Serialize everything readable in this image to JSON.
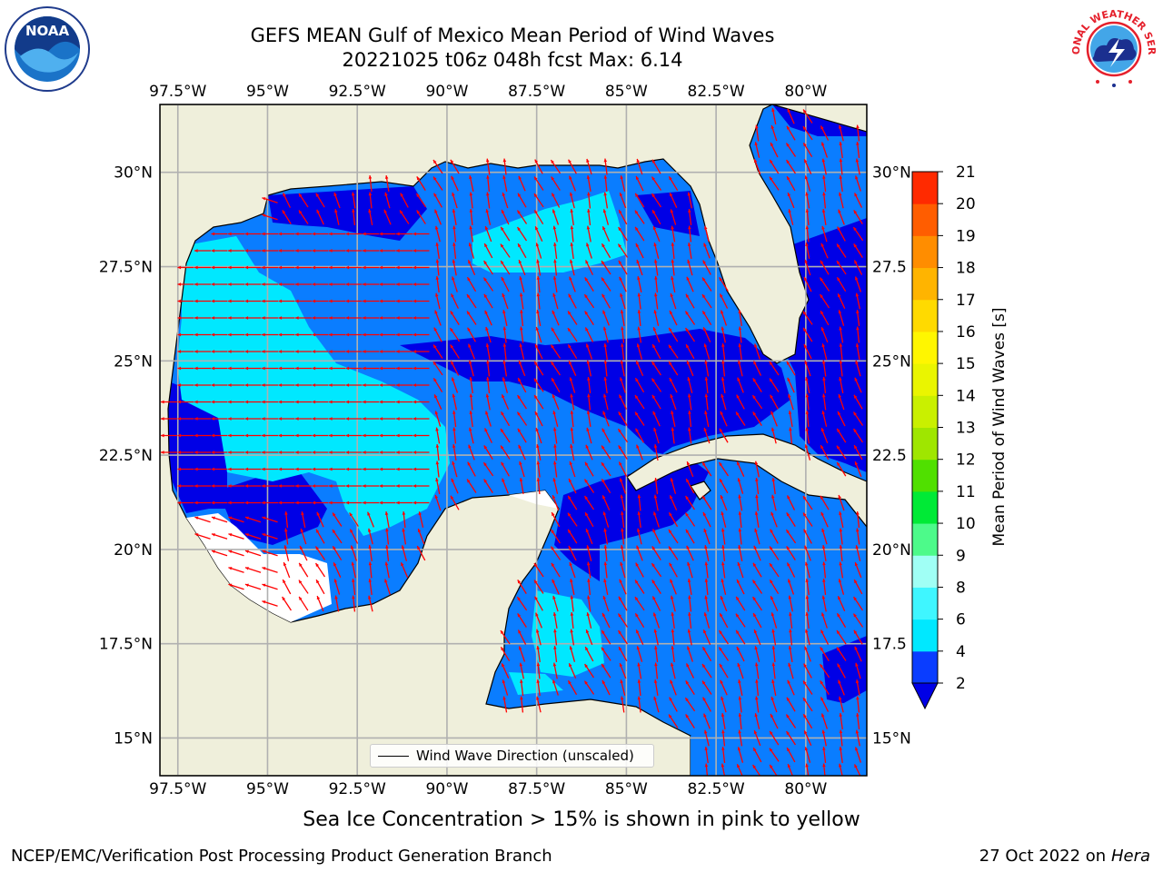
{
  "title": {
    "line1": "GEFS MEAN Gulf of Mexico Mean Period of Wind Waves",
    "line2": "20221025 t06z 048h fcst   Max: 6.14"
  },
  "map": {
    "lon_labels": [
      "97.5°W",
      "95°W",
      "92.5°W",
      "90°W",
      "87.5°W",
      "85°W",
      "82.5°W",
      "80°W"
    ],
    "lon_values": [
      -97.5,
      -95,
      -92.5,
      -90,
      -87.5,
      -85,
      -82.5,
      -80
    ],
    "lat_labels_left": [
      "30°N",
      "27.5°N",
      "25°N",
      "22.5°N",
      "20°N",
      "17.5°N",
      "15°N"
    ],
    "lat_labels_right": [
      "30°N",
      "27.5",
      "25°N",
      "22.5",
      "20°N",
      "17.5",
      "15°N"
    ],
    "lat_values": [
      30,
      27.5,
      25,
      22.5,
      20,
      17.5,
      15
    ],
    "extent": {
      "lon": [
        -98,
        -78.3
      ],
      "lat": [
        14,
        31.8
      ]
    },
    "land_color": "#efefdb",
    "grid_color": "#b0b0b0",
    "arrow_color": "#ff0000"
  },
  "colorbar": {
    "label": "Mean Period of Wind Waves [s]",
    "ticks": [
      "2",
      "4",
      "6",
      "8",
      "9",
      "10",
      "11",
      "12",
      "13",
      "14",
      "15",
      "16",
      "17",
      "18",
      "19",
      "20",
      "21"
    ],
    "colors": [
      "#0a3dff",
      "#00e8ff",
      "#3ff6ff",
      "#a0fff5",
      "#4dfa8a",
      "#00ea36",
      "#50e000",
      "#9fe600",
      "#c9f000",
      "#eaf500",
      "#fff600",
      "#ffda00",
      "#ffb400",
      "#ff8d00",
      "#ff5d00",
      "#ff2a00"
    ],
    "extend_color": "#0000e6"
  },
  "legend": {
    "label": "Wind Wave Direction (unscaled)"
  },
  "ice_note": "Sea Ice Concentration > 15% is shown in pink to yellow",
  "footer": {
    "left": "NCEP/EMC/Verification Post Processing Product Generation Branch",
    "date": "27 Oct 2022 on ",
    "machine": "Hera"
  },
  "logos": {
    "left": "NOAA",
    "right_text": "NATIONAL WEATHER SERVICE"
  },
  "icons": {
    "left_logo": "noaa-logo-icon",
    "right_logo": "nws-logo-icon"
  }
}
